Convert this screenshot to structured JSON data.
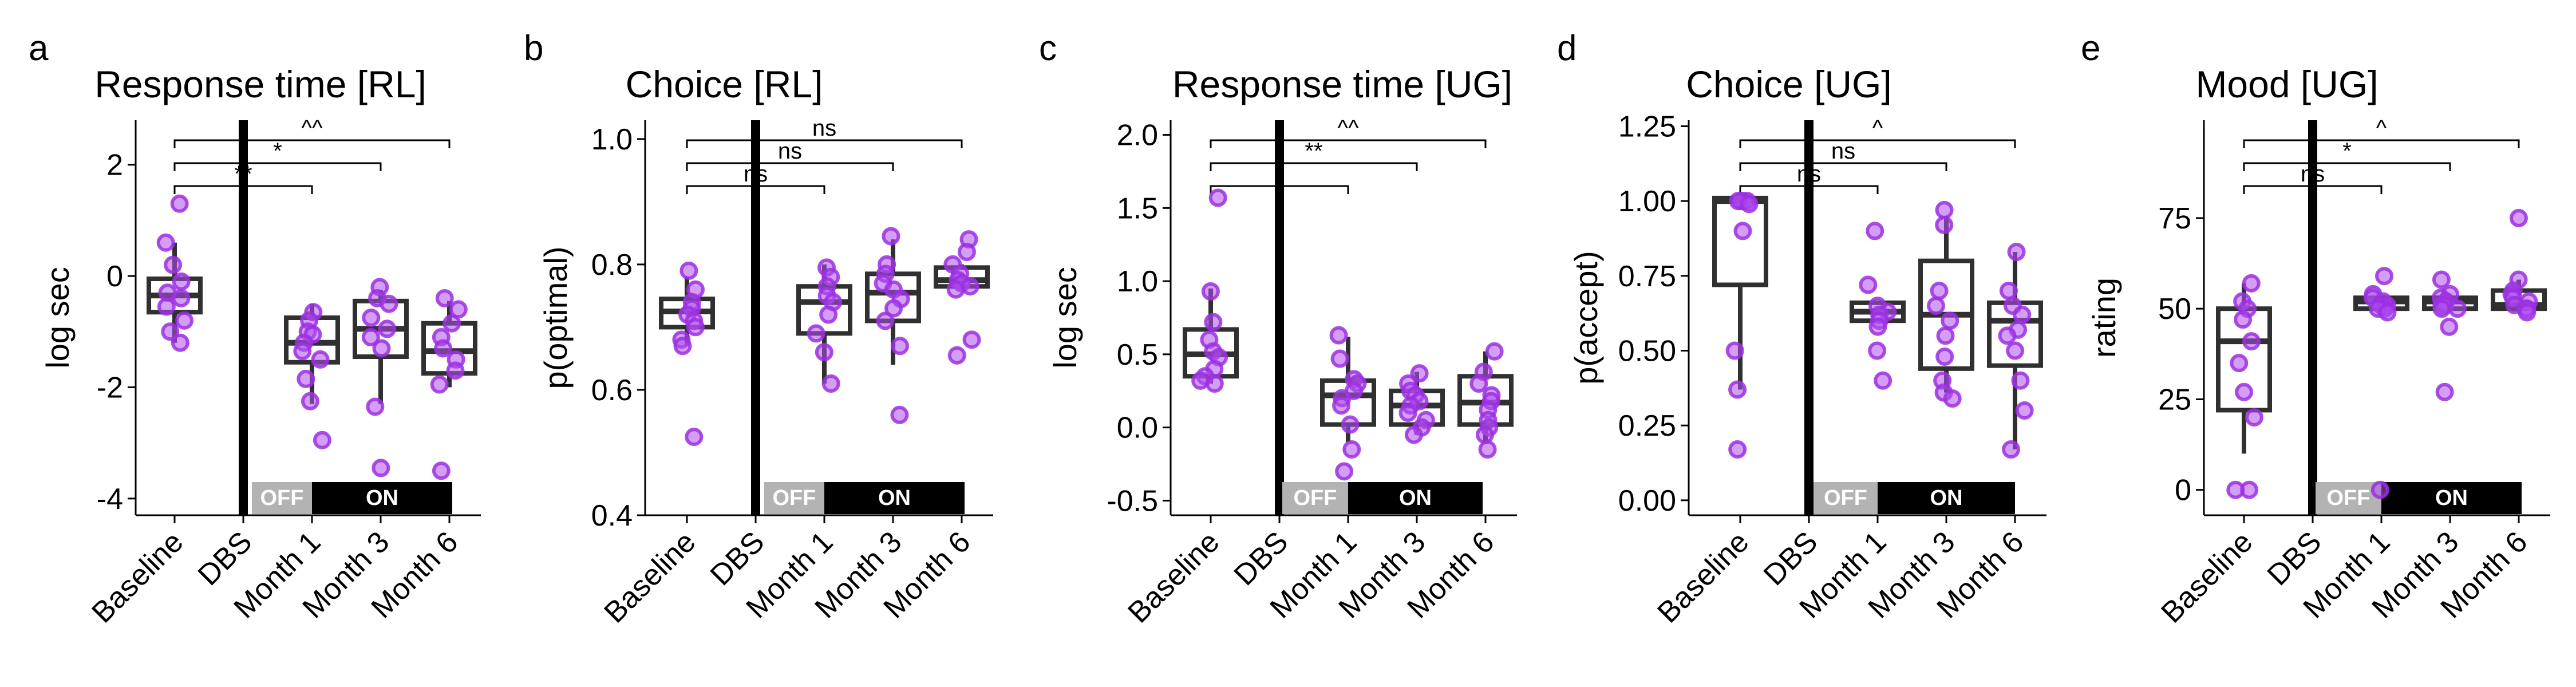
{
  "colors": {
    "point_fill": "#b04ff0",
    "point_stroke": "#9b30e0",
    "box_stroke": "#303030",
    "dbs_line": "#000000",
    "off_band": "#b3b3b3",
    "on_band": "#000000"
  },
  "categories": [
    "Baseline",
    "DBS",
    "Month 1",
    "Month 3",
    "Month 6"
  ],
  "dbs_labels": {
    "off": "OFF",
    "on": "ON"
  },
  "chart_data": [
    {
      "type": "box",
      "panel": "a",
      "title": "Response time [RL]",
      "ylabel": "log sec",
      "ylim": [
        -4.3,
        2.8
      ],
      "yticks": [
        -4,
        -2,
        0,
        2
      ],
      "ytick_labels": [
        "-4",
        "-2",
        "0",
        "2"
      ],
      "boxes": [
        {
          "category": "Baseline",
          "whisker_low": -1.2,
          "q1": -0.65,
          "median": -0.35,
          "q3": -0.05,
          "whisker_high": 0.6
        },
        {
          "category": "Month 1",
          "whisker_low": -2.3,
          "q1": -1.55,
          "median": -1.2,
          "q3": -0.75,
          "whisker_high": -0.5
        },
        {
          "category": "Month 3",
          "whisker_low": -2.3,
          "q1": -1.45,
          "median": -0.95,
          "q3": -0.45,
          "whisker_high": -0.25
        },
        {
          "category": "Month 6",
          "whisker_low": -2.0,
          "q1": -1.75,
          "median": -1.35,
          "q3": -0.85,
          "whisker_high": -0.45
        }
      ],
      "points": [
        {
          "category": "Baseline",
          "values": [
            1.3,
            0.6,
            0.2,
            -0.1,
            -0.3,
            -0.4,
            -0.55,
            -0.8,
            -1.0,
            -1.2
          ]
        },
        {
          "category": "Month 1",
          "values": [
            -0.65,
            -0.8,
            -1.0,
            -1.05,
            -1.2,
            -1.35,
            -1.5,
            -1.85,
            -2.25,
            -2.95
          ]
        },
        {
          "category": "Month 3",
          "values": [
            -0.2,
            -0.4,
            -0.5,
            -0.75,
            -0.95,
            -1.1,
            -1.3,
            -2.35,
            -3.45
          ]
        },
        {
          "category": "Month 6",
          "values": [
            -0.4,
            -0.6,
            -0.85,
            -1.1,
            -1.3,
            -1.5,
            -1.7,
            -1.95,
            -3.5
          ]
        }
      ],
      "comparisons": [
        {
          "from": "Baseline",
          "to": "Month 1",
          "label": "**"
        },
        {
          "from": "Baseline",
          "to": "Month 3",
          "label": "*"
        },
        {
          "from": "Baseline",
          "to": "Month 6",
          "label": "^^"
        }
      ]
    },
    {
      "type": "box",
      "panel": "b",
      "title": "Choice [RL]",
      "ylabel": "p(optimal)",
      "ylim": [
        0.4,
        1.03
      ],
      "yticks": [
        0.4,
        0.6,
        0.8,
        1.0
      ],
      "ytick_labels": [
        "0.4",
        "0.6",
        "0.8",
        "1.0"
      ],
      "boxes": [
        {
          "category": "Baseline",
          "whisker_low": 0.67,
          "q1": 0.7,
          "median": 0.725,
          "q3": 0.745,
          "whisker_high": 0.78
        },
        {
          "category": "Month 1",
          "whisker_low": 0.61,
          "q1": 0.69,
          "median": 0.74,
          "q3": 0.765,
          "whisker_high": 0.8
        },
        {
          "category": "Month 3",
          "whisker_low": 0.64,
          "q1": 0.71,
          "median": 0.755,
          "q3": 0.785,
          "whisker_high": 0.84
        },
        {
          "category": "Month 6",
          "whisker_low": 0.76,
          "q1": 0.765,
          "median": 0.775,
          "q3": 0.795,
          "whisker_high": 0.8
        }
      ],
      "points": [
        {
          "category": "Baseline",
          "values": [
            0.79,
            0.76,
            0.74,
            0.73,
            0.72,
            0.71,
            0.7,
            0.68,
            0.67,
            0.525
          ]
        },
        {
          "category": "Month 1",
          "values": [
            0.795,
            0.78,
            0.765,
            0.75,
            0.74,
            0.72,
            0.69,
            0.66,
            0.61
          ]
        },
        {
          "category": "Month 3",
          "values": [
            0.845,
            0.8,
            0.785,
            0.77,
            0.76,
            0.745,
            0.73,
            0.71,
            0.67,
            0.56
          ]
        },
        {
          "category": "Month 6",
          "values": [
            0.84,
            0.82,
            0.8,
            0.785,
            0.775,
            0.77,
            0.765,
            0.76,
            0.68,
            0.655
          ]
        }
      ],
      "comparisons": [
        {
          "from": "Baseline",
          "to": "Month 1",
          "label": "ns"
        },
        {
          "from": "Baseline",
          "to": "Month 3",
          "label": "ns"
        },
        {
          "from": "Baseline",
          "to": "Month 6",
          "label": "ns"
        }
      ]
    },
    {
      "type": "box",
      "panel": "c",
      "title": "Response time [UG]",
      "ylabel": "log sec",
      "ylim": [
        -0.6,
        2.1
      ],
      "yticks": [
        -0.5,
        0.0,
        0.5,
        1.0,
        1.5,
        2.0
      ],
      "ytick_labels": [
        "-0.5",
        "0.0",
        "0.5",
        "1.0",
        "1.5",
        "2.0"
      ],
      "boxes": [
        {
          "category": "Baseline",
          "whisker_low": 0.3,
          "q1": 0.35,
          "median": 0.5,
          "q3": 0.67,
          "whisker_high": 0.95
        },
        {
          "category": "Month 1",
          "whisker_low": -0.1,
          "q1": 0.02,
          "median": 0.22,
          "q3": 0.32,
          "whisker_high": 0.62
        },
        {
          "category": "Month 3",
          "whisker_low": -0.05,
          "q1": 0.02,
          "median": 0.15,
          "q3": 0.25,
          "whisker_high": 0.38
        },
        {
          "category": "Month 6",
          "whisker_low": -0.1,
          "q1": 0.02,
          "median": 0.17,
          "q3": 0.35,
          "whisker_high": 0.52
        }
      ],
      "points": [
        {
          "category": "Baseline",
          "values": [
            1.57,
            0.93,
            0.72,
            0.6,
            0.52,
            0.48,
            0.4,
            0.35,
            0.32,
            0.3
          ]
        },
        {
          "category": "Month 1",
          "values": [
            0.63,
            0.47,
            0.33,
            0.3,
            0.25,
            0.2,
            0.15,
            0.02,
            -0.15,
            -0.3
          ]
        },
        {
          "category": "Month 3",
          "values": [
            0.37,
            0.3,
            0.25,
            0.22,
            0.18,
            0.15,
            0.1,
            0.05,
            0.0,
            -0.05
          ]
        },
        {
          "category": "Month 6",
          "values": [
            0.52,
            0.38,
            0.3,
            0.22,
            0.18,
            0.12,
            0.05,
            0.0,
            -0.05,
            -0.15
          ]
        }
      ],
      "comparisons": [
        {
          "from": "Baseline",
          "to": "Month 1",
          "label": ""
        },
        {
          "from": "Baseline",
          "to": "Month 3",
          "label": "**"
        },
        {
          "from": "Baseline",
          "to": "Month 6",
          "label": "^^"
        }
      ]
    },
    {
      "type": "box",
      "panel": "d",
      "title": "Choice [UG]",
      "ylabel": "p(accept)",
      "ylim": [
        -0.05,
        1.27
      ],
      "yticks": [
        0.0,
        0.25,
        0.5,
        0.75,
        1.0,
        1.25
      ],
      "ytick_labels": [
        "0.00",
        "0.25",
        "0.50",
        "0.75",
        "1.00",
        "1.25"
      ],
      "boxes": [
        {
          "category": "Baseline",
          "whisker_low": 0.37,
          "q1": 0.72,
          "median": 1.0,
          "q3": 1.01,
          "whisker_high": 1.01
        },
        {
          "category": "Month 1",
          "whisker_low": 0.6,
          "q1": 0.6,
          "median": 0.63,
          "q3": 0.66,
          "whisker_high": 0.66
        },
        {
          "category": "Month 3",
          "whisker_low": 0.36,
          "q1": 0.44,
          "median": 0.62,
          "q3": 0.8,
          "whisker_high": 0.95
        },
        {
          "category": "Month 6",
          "whisker_low": 0.17,
          "q1": 0.45,
          "median": 0.6,
          "q3": 0.66,
          "whisker_high": 0.83
        }
      ],
      "points": [
        {
          "category": "Baseline",
          "values": [
            1.0,
            1.0,
            1.0,
            1.0,
            0.99,
            0.9,
            0.5,
            0.37,
            0.17
          ]
        },
        {
          "category": "Month 1",
          "values": [
            0.9,
            0.72,
            0.65,
            0.63,
            0.62,
            0.6,
            0.58,
            0.5,
            0.4
          ]
        },
        {
          "category": "Month 3",
          "values": [
            0.97,
            0.92,
            0.7,
            0.65,
            0.6,
            0.55,
            0.48,
            0.4,
            0.36,
            0.34
          ]
        },
        {
          "category": "Month 6",
          "values": [
            0.83,
            0.7,
            0.65,
            0.62,
            0.57,
            0.55,
            0.5,
            0.4,
            0.3,
            0.17
          ]
        }
      ],
      "comparisons": [
        {
          "from": "Baseline",
          "to": "Month 1",
          "label": "ns"
        },
        {
          "from": "Baseline",
          "to": "Month 3",
          "label": "ns"
        },
        {
          "from": "Baseline",
          "to": "Month 6",
          "label": "^"
        }
      ]
    },
    {
      "type": "box",
      "panel": "e",
      "title": "Mood [UG]",
      "ylabel": "rating",
      "ylim": [
        -7,
        102
      ],
      "yticks": [
        0,
        25,
        50,
        75
      ],
      "ytick_labels": [
        "0",
        "25",
        "50",
        "75"
      ],
      "boxes": [
        {
          "category": "Baseline",
          "whisker_low": 10,
          "q1": 22,
          "median": 41,
          "q3": 50,
          "whisker_high": 57
        },
        {
          "category": "Month 1",
          "whisker_low": 50,
          "q1": 50,
          "median": 52,
          "q3": 53,
          "whisker_high": 53
        },
        {
          "category": "Month 3",
          "whisker_low": 50,
          "q1": 50,
          "median": 52,
          "q3": 53,
          "whisker_high": 53
        },
        {
          "category": "Month 6",
          "whisker_low": 50,
          "q1": 50,
          "median": 51,
          "q3": 55,
          "whisker_high": 58
        }
      ],
      "points": [
        {
          "category": "Baseline",
          "values": [
            57,
            52,
            50,
            47,
            41,
            35,
            27,
            20,
            0,
            0
          ]
        },
        {
          "category": "Month 1",
          "values": [
            59,
            54,
            53,
            52,
            51,
            51,
            50,
            50,
            49,
            0
          ]
        },
        {
          "category": "Month 3",
          "values": [
            58,
            54,
            53,
            52,
            51,
            51,
            50,
            50,
            45,
            27
          ]
        },
        {
          "category": "Month 6",
          "values": [
            75,
            58,
            55,
            54,
            53,
            52,
            51,
            50,
            50,
            49
          ]
        }
      ],
      "comparisons": [
        {
          "from": "Baseline",
          "to": "Month 1",
          "label": "ns"
        },
        {
          "from": "Baseline",
          "to": "Month 3",
          "label": "*"
        },
        {
          "from": "Baseline",
          "to": "Month 6",
          "label": "^"
        }
      ]
    }
  ]
}
